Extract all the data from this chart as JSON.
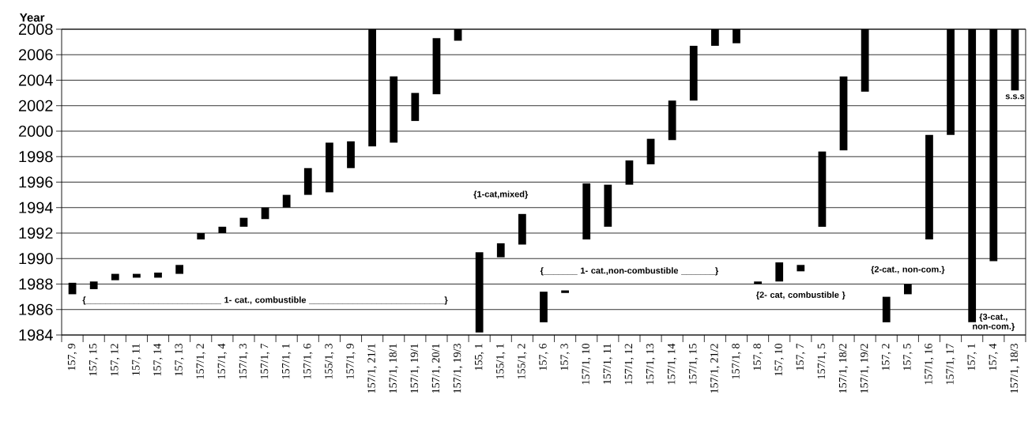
{
  "chart_data": {
    "type": "bar",
    "ylabel": "Year",
    "color": "#000000",
    "grid": "y",
    "categories": [
      "157, 9",
      "157, 15",
      "157, 12",
      "157, 11",
      "157, 14",
      "157, 13",
      "157/1, 2",
      "157/1, 4",
      "157/1, 3",
      "157/1, 7",
      "157/1, 1",
      "157/1, 6",
      "155/1, 3",
      "157/1, 9",
      "157/1, 21/1",
      "157/1, 18/1",
      "157/1, 19/1",
      "157/1, 20/1",
      "157/1, 19/3",
      "155, 1",
      "155/1, 1",
      "155/1, 2",
      "157, 6",
      "157, 3",
      "157/1, 10",
      "157/1, 11",
      "157/1, 12",
      "157/1, 13",
      "157/1, 14",
      "157/1, 15",
      "157/1, 21/2",
      "157/1, 8",
      "157, 8",
      "157, 10",
      "157, 7",
      "157/1, 5",
      "157/1, 18/2",
      "157/1, 19/2",
      "157, 2",
      "157, 5",
      "157/1, 16",
      "157/1, 17",
      "157, 1",
      "157, 4",
      "157/1, 18/3"
    ],
    "base": [
      1987.2,
      1987.6,
      1988.3,
      1988.5,
      1988.5,
      1988.8,
      1991.5,
      1992.0,
      1992.5,
      1993.1,
      1994.0,
      1995.0,
      1995.2,
      1997.1,
      1998.8,
      1999.1,
      2000.8,
      2002.9,
      2007.1,
      1984.2,
      1990.1,
      1991.1,
      1985.0,
      1987.3,
      1991.5,
      1992.5,
      1995.8,
      1997.4,
      1999.3,
      2002.4,
      2006.7,
      2006.9,
      1988.0,
      1988.2,
      1989.0,
      1992.5,
      1998.5,
      2003.1,
      1985.0,
      1987.2,
      1991.5,
      1999.7,
      1985.0,
      1989.8,
      2003.2
    ],
    "values": [
      0.9,
      0.6,
      0.5,
      0.3,
      0.4,
      0.7,
      0.5,
      0.5,
      0.7,
      0.9,
      1.0,
      2.1,
      3.9,
      2.1,
      9.2,
      5.2,
      2.2,
      4.4,
      0.9,
      6.3,
      1.1,
      2.4,
      2.4,
      0.2,
      4.4,
      3.3,
      1.9,
      2.0,
      3.1,
      4.3,
      1.3,
      1.1,
      0.2,
      1.5,
      0.5,
      5.9,
      5.8,
      4.9,
      2.0,
      0.8,
      8.2,
      8.3,
      23.0,
      18.2,
      4.8
    ],
    "ylim": [
      1984,
      2008
    ],
    "yticks": [
      1984,
      1986,
      1988,
      1990,
      1992,
      1994,
      1996,
      1998,
      2000,
      2002,
      2004,
      2006,
      2008
    ],
    "annotations": [
      "{____________________________ 1- cat., combustible ____________________________}",
      "{1-cat,mixed}",
      "{_______ 1- cat.,non-combustible _______}",
      "{2- cat, combustible }",
      "{2-cat., non-com.}",
      "{3-cat., non-com.}",
      "s.s.s"
    ]
  }
}
